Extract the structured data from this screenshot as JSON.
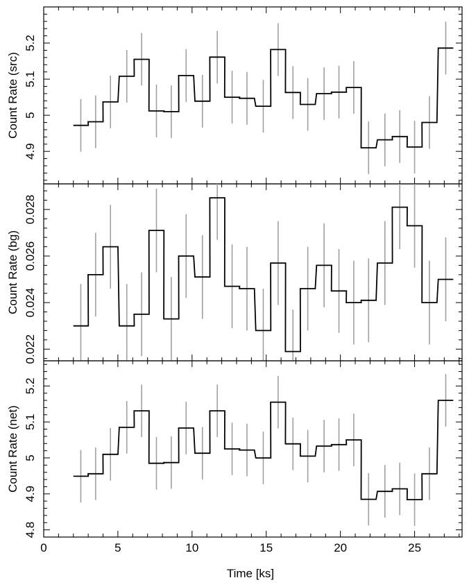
{
  "chart_data": {
    "type": "line",
    "layout": "three vertically stacked panels sharing the time axis",
    "xlabel": "Time [ks]",
    "xlim": [
      0,
      28.2
    ],
    "xticks": [
      0,
      5,
      10,
      15,
      20,
      25
    ],
    "xtick_labels": [
      "0",
      "5",
      "10",
      "15",
      "20",
      "25"
    ],
    "bin_width": 1.01,
    "bin_centers": [
      2.5,
      3.5,
      4.5,
      5.6,
      6.6,
      7.6,
      8.6,
      9.6,
      10.7,
      11.7,
      12.7,
      13.7,
      14.8,
      15.8,
      16.8,
      17.8,
      18.9,
      19.9,
      20.9,
      21.9,
      23.0,
      24.0,
      25.0,
      26.0,
      27.1
    ],
    "step_color": "#000000",
    "errorbar_color": "#a0a0a0",
    "panels": [
      {
        "ylabel": "Count Rate (src)",
        "ylim": [
          4.81,
          5.3
        ],
        "yticks": [
          4.9,
          5.0,
          5.1,
          5.2
        ],
        "ytick_labels": [
          "4.9",
          "5",
          "5.1",
          "5.2"
        ],
        "values": [
          4.972,
          4.982,
          5.037,
          5.108,
          5.155,
          5.012,
          5.01,
          5.11,
          5.039,
          5.161,
          5.05,
          5.047,
          5.025,
          5.182,
          5.063,
          5.03,
          5.06,
          5.064,
          5.077,
          4.91,
          4.932,
          4.941,
          4.912,
          4.98,
          5.186
        ],
        "errors": [
          0.073,
          0.073,
          0.073,
          0.073,
          0.073,
          0.073,
          0.073,
          0.073,
          0.073,
          0.073,
          0.073,
          0.073,
          0.073,
          0.073,
          0.073,
          0.073,
          0.073,
          0.073,
          0.073,
          0.073,
          0.073,
          0.073,
          0.073,
          0.073,
          0.073
        ]
      },
      {
        "ylabel": "Count Rate (bg)",
        "ylim": [
          0.0215,
          0.0291
        ],
        "yticks": [
          0.022,
          0.024,
          0.026,
          0.028
        ],
        "ytick_labels": [
          "0.022",
          "0.024",
          "0.026",
          "0.028"
        ],
        "values": [
          0.023,
          0.0252,
          0.0264,
          0.023,
          0.0235,
          0.0271,
          0.0233,
          0.026,
          0.0251,
          0.0285,
          0.0247,
          0.0246,
          0.0228,
          0.0257,
          0.0219,
          0.0246,
          0.0256,
          0.0245,
          0.024,
          0.0241,
          0.0257,
          0.0281,
          0.0273,
          0.024,
          0.025
        ],
        "errors": [
          0.0018,
          0.0018,
          0.0018,
          0.0018,
          0.0018,
          0.0018,
          0.0018,
          0.0018,
          0.0018,
          0.0018,
          0.0018,
          0.0018,
          0.0018,
          0.0018,
          0.0018,
          0.0018,
          0.0018,
          0.0018,
          0.0018,
          0.0018,
          0.0018,
          0.0018,
          0.0018,
          0.0018,
          0.0018
        ]
      },
      {
        "ylabel": "Count Rate (net)",
        "ylim": [
          4.78,
          5.27
        ],
        "yticks": [
          4.8,
          4.9,
          5.0,
          5.1,
          5.2
        ],
        "ytick_labels": [
          "4.8",
          "4.9",
          "5",
          "5.1",
          "5.2"
        ],
        "values": [
          4.949,
          4.956,
          5.01,
          5.085,
          5.131,
          4.985,
          4.987,
          5.083,
          5.013,
          5.131,
          5.025,
          5.022,
          5.0,
          5.155,
          5.039,
          5.005,
          5.033,
          5.037,
          5.05,
          4.885,
          4.907,
          4.914,
          4.884,
          4.956,
          5.16
        ],
        "errors": [
          0.073,
          0.073,
          0.073,
          0.073,
          0.073,
          0.073,
          0.073,
          0.073,
          0.073,
          0.073,
          0.073,
          0.073,
          0.073,
          0.073,
          0.073,
          0.073,
          0.073,
          0.073,
          0.073,
          0.073,
          0.073,
          0.073,
          0.073,
          0.073,
          0.073
        ]
      }
    ]
  }
}
